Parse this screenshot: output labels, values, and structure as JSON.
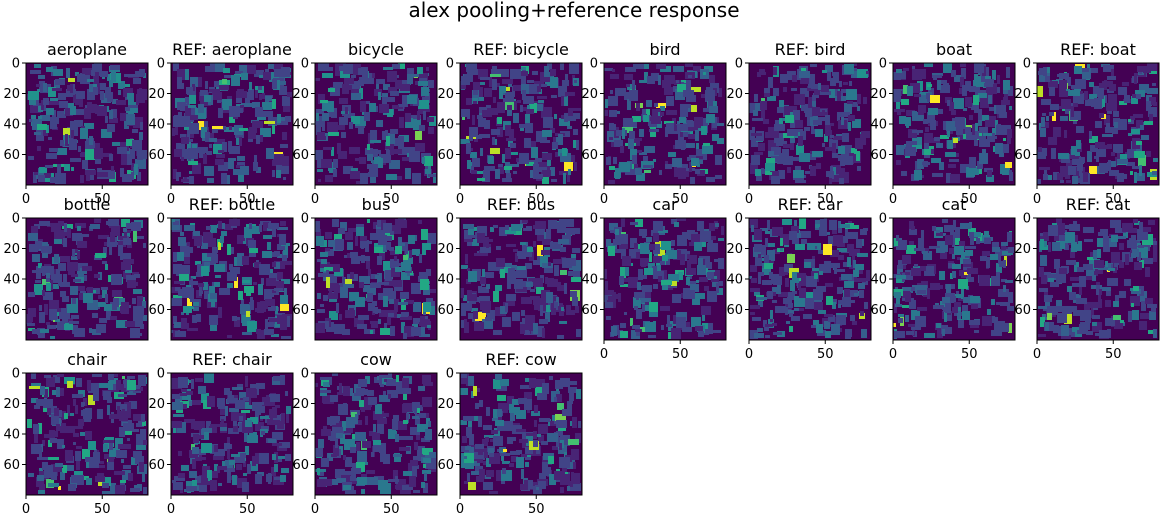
{
  "figure_title": "alex pooling+reference response",
  "chart_data": {
    "type": "heatmap",
    "colormap": "viridis",
    "grid": false,
    "layout": {
      "rows": 3,
      "cols": 8
    },
    "image_size": [
      80,
      80
    ],
    "xlim": [
      0,
      80
    ],
    "ylim": [
      80,
      0
    ],
    "x_ticks": [
      "0",
      "50"
    ],
    "y_ticks": [
      "0",
      "20",
      "40",
      "60"
    ],
    "panels": [
      {
        "title": "aeroplane",
        "xticks_shown": true
      },
      {
        "title": "REF: aeroplane",
        "xticks_shown": true
      },
      {
        "title": "bicycle",
        "xticks_shown": true
      },
      {
        "title": "REF: bicycle",
        "xticks_shown": true
      },
      {
        "title": "bird",
        "xticks_shown": true
      },
      {
        "title": "REF: bird",
        "xticks_shown": true
      },
      {
        "title": "boat",
        "xticks_shown": true
      },
      {
        "title": "REF: boat",
        "xticks_shown": true
      },
      {
        "title": "bottle",
        "xticks_shown": false
      },
      {
        "title": "REF: bottle",
        "xticks_shown": false
      },
      {
        "title": "bus",
        "xticks_shown": false
      },
      {
        "title": "REF: bus",
        "xticks_shown": false
      },
      {
        "title": "car",
        "xticks_shown": true
      },
      {
        "title": "REF: car",
        "xticks_shown": true
      },
      {
        "title": "cat",
        "xticks_shown": true
      },
      {
        "title": "REF: cat",
        "xticks_shown": true
      },
      {
        "title": "chair",
        "xticks_shown": true
      },
      {
        "title": "REF: chair",
        "xticks_shown": true
      },
      {
        "title": "cow",
        "xticks_shown": true
      },
      {
        "title": "REF: cow",
        "xticks_shown": true
      }
    ]
  }
}
